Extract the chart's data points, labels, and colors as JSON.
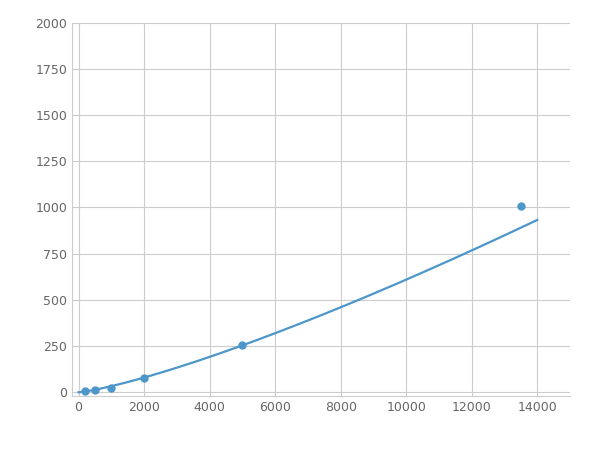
{
  "x_points": [
    200,
    500,
    1000,
    2000,
    5000,
    13500
  ],
  "y_points": [
    5,
    15,
    25,
    75,
    255,
    1005
  ],
  "line_color": "#4d96c9",
  "marker_color": "#4d96c9",
  "marker_size": 5,
  "line_width": 1.6,
  "xlim": [
    -200,
    15000
  ],
  "ylim": [
    -20,
    2000
  ],
  "xticks": [
    0,
    2000,
    4000,
    6000,
    8000,
    10000,
    12000,
    14000
  ],
  "yticks": [
    0,
    250,
    500,
    750,
    1000,
    1250,
    1500,
    1750,
    2000
  ],
  "grid_color": "#cccccc",
  "background_color": "#ffffff",
  "figure_background": "#ffffff"
}
